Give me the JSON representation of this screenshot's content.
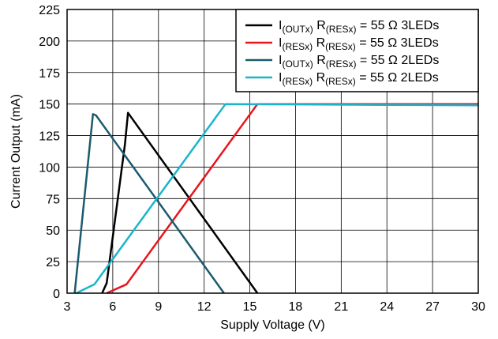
{
  "chart_data": {
    "type": "line",
    "title": "",
    "xlabel": "Supply Voltage (V)",
    "ylabel": "Current Output (mA)",
    "xlim": [
      3,
      30
    ],
    "ylim": [
      0,
      225
    ],
    "x_ticks": [
      "3",
      "6",
      "9",
      "12",
      "15",
      "18",
      "21",
      "24",
      "27",
      "30"
    ],
    "y_ticks": [
      "0",
      "25",
      "50",
      "75",
      "100",
      "125",
      "150",
      "175",
      "200",
      "225"
    ],
    "grid": true,
    "legend_position": "top-right",
    "series": [
      {
        "name": "I(OUTx) R(RESx) = 55 Ω 3LEDs",
        "legend": {
          "main1": "I",
          "sub1": "(OUTx)",
          "main2": " R",
          "sub2": "(RESx)",
          "main3": " = 55 Ω 3LEDs"
        },
        "color": "#000000",
        "points": [
          [
            5.3,
            0
          ],
          [
            5.6,
            8
          ],
          [
            6.8,
            118
          ],
          [
            7.0,
            143
          ],
          [
            15.5,
            0
          ]
        ]
      },
      {
        "name": "I(RESx) R(RESx) = 55 Ω 3LEDs",
        "legend": {
          "main1": "I",
          "sub1": "(RESx)",
          "main2": " R",
          "sub2": "(RESx)",
          "main3": " = 55 Ω 3LEDs"
        },
        "color": "#e8141b",
        "points": [
          [
            5.6,
            0
          ],
          [
            6.9,
            7
          ],
          [
            15.5,
            150
          ],
          [
            30,
            150
          ]
        ]
      },
      {
        "name": "I(OUTx) R(RESx) = 55 Ω 2LEDs",
        "legend": {
          "main1": "I",
          "sub1": "(OUTx)",
          "main2": " R",
          "sub2": "(RESx)",
          "main3": " = 55 Ω 2LEDs"
        },
        "color": "#1b5a6e",
        "points": [
          [
            3.5,
            0
          ],
          [
            4.7,
            142
          ],
          [
            4.9,
            141
          ],
          [
            13.3,
            0
          ]
        ]
      },
      {
        "name": "I(RESx) R(RESx) = 55 Ω 2LEDs",
        "legend": {
          "main1": "I",
          "sub1": "(RESx)",
          "main2": " R",
          "sub2": "(RESx)",
          "main3": " = 55 Ω 2LEDs"
        },
        "color": "#1ab5cc",
        "points": [
          [
            3.6,
            0
          ],
          [
            4.8,
            7
          ],
          [
            13.4,
            150
          ],
          [
            30,
            149
          ]
        ]
      }
    ]
  }
}
